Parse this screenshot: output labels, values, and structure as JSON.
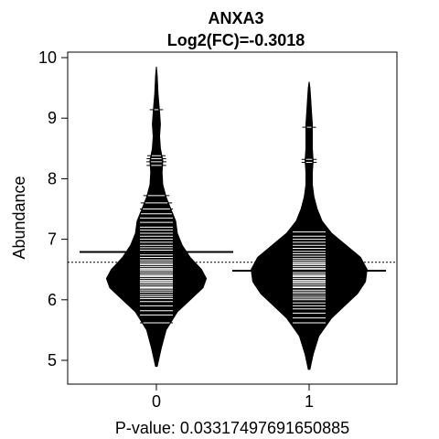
{
  "chart_data": {
    "type": "beanplot",
    "title_line1": "ANXA3",
    "title_line2": "Log2(FC)=-0.3018",
    "xlabel": "P-value: 0.03317497691650885",
    "ylabel": "Abundance",
    "categories": [
      "0",
      "1"
    ],
    "ylim": [
      4.8,
      10.1
    ],
    "yticks": [
      5,
      6,
      7,
      8,
      9,
      10
    ],
    "overall_mean": 6.62,
    "series": [
      {
        "name": "0",
        "mean": 6.79,
        "density": [
          [
            4.9,
            0.01
          ],
          [
            5.2,
            0.06
          ],
          [
            5.5,
            0.12
          ],
          [
            5.8,
            0.26
          ],
          [
            6.0,
            0.42
          ],
          [
            6.2,
            0.58
          ],
          [
            6.35,
            0.62
          ],
          [
            6.5,
            0.56
          ],
          [
            6.7,
            0.42
          ],
          [
            6.9,
            0.32
          ],
          [
            7.1,
            0.26
          ],
          [
            7.3,
            0.24
          ],
          [
            7.5,
            0.18
          ],
          [
            7.7,
            0.12
          ],
          [
            7.9,
            0.08
          ],
          [
            8.1,
            0.07
          ],
          [
            8.3,
            0.08
          ],
          [
            8.5,
            0.05
          ],
          [
            8.7,
            0.04
          ],
          [
            8.9,
            0.05
          ],
          [
            9.1,
            0.04
          ],
          [
            9.4,
            0.02
          ],
          [
            9.7,
            0.01
          ],
          [
            9.85,
            0.0
          ]
        ],
        "points": [
          5.62,
          5.75,
          5.82,
          5.9,
          5.97,
          6.02,
          6.05,
          6.08,
          6.12,
          6.15,
          6.18,
          6.2,
          6.22,
          6.25,
          6.28,
          6.3,
          6.32,
          6.35,
          6.38,
          6.4,
          6.42,
          6.45,
          6.48,
          6.5,
          6.52,
          6.55,
          6.58,
          6.6,
          6.63,
          6.66,
          6.7,
          6.74,
          6.78,
          6.82,
          6.86,
          6.9,
          6.95,
          7.0,
          7.05,
          7.1,
          7.15,
          7.2,
          7.28,
          7.35,
          7.42,
          7.5,
          7.6,
          7.72,
          8.22,
          8.28,
          8.33,
          8.38,
          9.14
        ]
      },
      {
        "name": "1",
        "mean": 6.48,
        "density": [
          [
            4.85,
            0.01
          ],
          [
            5.1,
            0.05
          ],
          [
            5.4,
            0.12
          ],
          [
            5.7,
            0.28
          ],
          [
            5.9,
            0.44
          ],
          [
            6.1,
            0.6
          ],
          [
            6.3,
            0.7
          ],
          [
            6.5,
            0.72
          ],
          [
            6.7,
            0.64
          ],
          [
            6.9,
            0.46
          ],
          [
            7.1,
            0.28
          ],
          [
            7.3,
            0.16
          ],
          [
            7.5,
            0.1
          ],
          [
            7.7,
            0.06
          ],
          [
            7.9,
            0.04
          ],
          [
            8.1,
            0.04
          ],
          [
            8.3,
            0.05
          ],
          [
            8.5,
            0.04
          ],
          [
            8.7,
            0.04
          ],
          [
            8.9,
            0.04
          ],
          [
            9.1,
            0.03
          ],
          [
            9.3,
            0.02
          ],
          [
            9.5,
            0.01
          ],
          [
            9.6,
            0.0
          ]
        ],
        "points": [
          5.62,
          5.7,
          5.78,
          5.85,
          5.9,
          5.95,
          6.0,
          6.03,
          6.06,
          6.1,
          6.13,
          6.16,
          6.2,
          6.22,
          6.25,
          6.28,
          6.3,
          6.32,
          6.35,
          6.38,
          6.4,
          6.42,
          6.45,
          6.48,
          6.5,
          6.52,
          6.55,
          6.58,
          6.6,
          6.62,
          6.65,
          6.68,
          6.72,
          6.76,
          6.8,
          6.85,
          6.9,
          6.95,
          7.0,
          7.05,
          7.12,
          8.27,
          8.32,
          8.85
        ]
      }
    ]
  }
}
